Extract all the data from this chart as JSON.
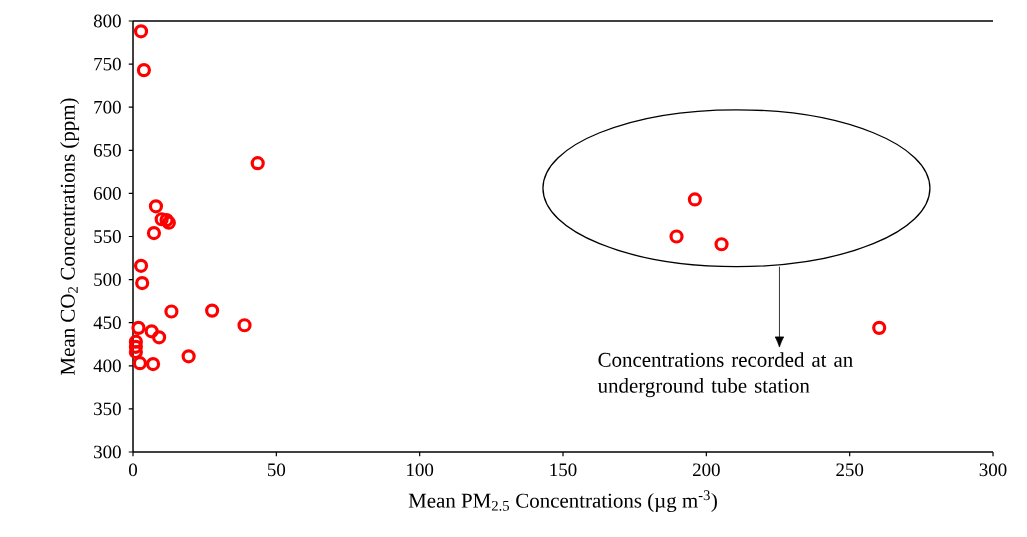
{
  "chart_data": {
    "type": "scatter",
    "xlabel": "Mean PM$_{2.5}$ Concentrations (µg m$^{-3}$)",
    "ylabel": "Mean CO$_{2}$ Concentrations (ppm)",
    "xlim": [
      0,
      300
    ],
    "ylim": [
      300,
      800
    ],
    "xticks": [
      0,
      50,
      100,
      150,
      200,
      250,
      300
    ],
    "yticks": [
      300,
      350,
      400,
      450,
      500,
      550,
      600,
      650,
      700,
      750,
      800
    ],
    "marker": "circle",
    "grid": false,
    "annotations": [
      "Concentrations recorded at an underground tube station"
    ],
    "series": [
      {
        "color": "#ff0000",
        "x": [
          2.8,
          3.8,
          43.5,
          8,
          11.7,
          10,
          12.5,
          7.3,
          2.8,
          3.2,
          13.4,
          27.6,
          38.9,
          1.9,
          6.5,
          9.1,
          1,
          1,
          1,
          19.4,
          2.4,
          7,
          196,
          189.6,
          205.3,
          260.3
        ],
        "values": [
          788,
          743,
          635,
          585,
          569,
          570,
          566,
          554,
          516,
          496,
          463,
          464,
          447,
          444,
          440,
          433,
          428,
          422,
          416,
          411,
          403,
          402,
          593,
          550,
          541,
          444
        ]
      }
    ]
  }
}
